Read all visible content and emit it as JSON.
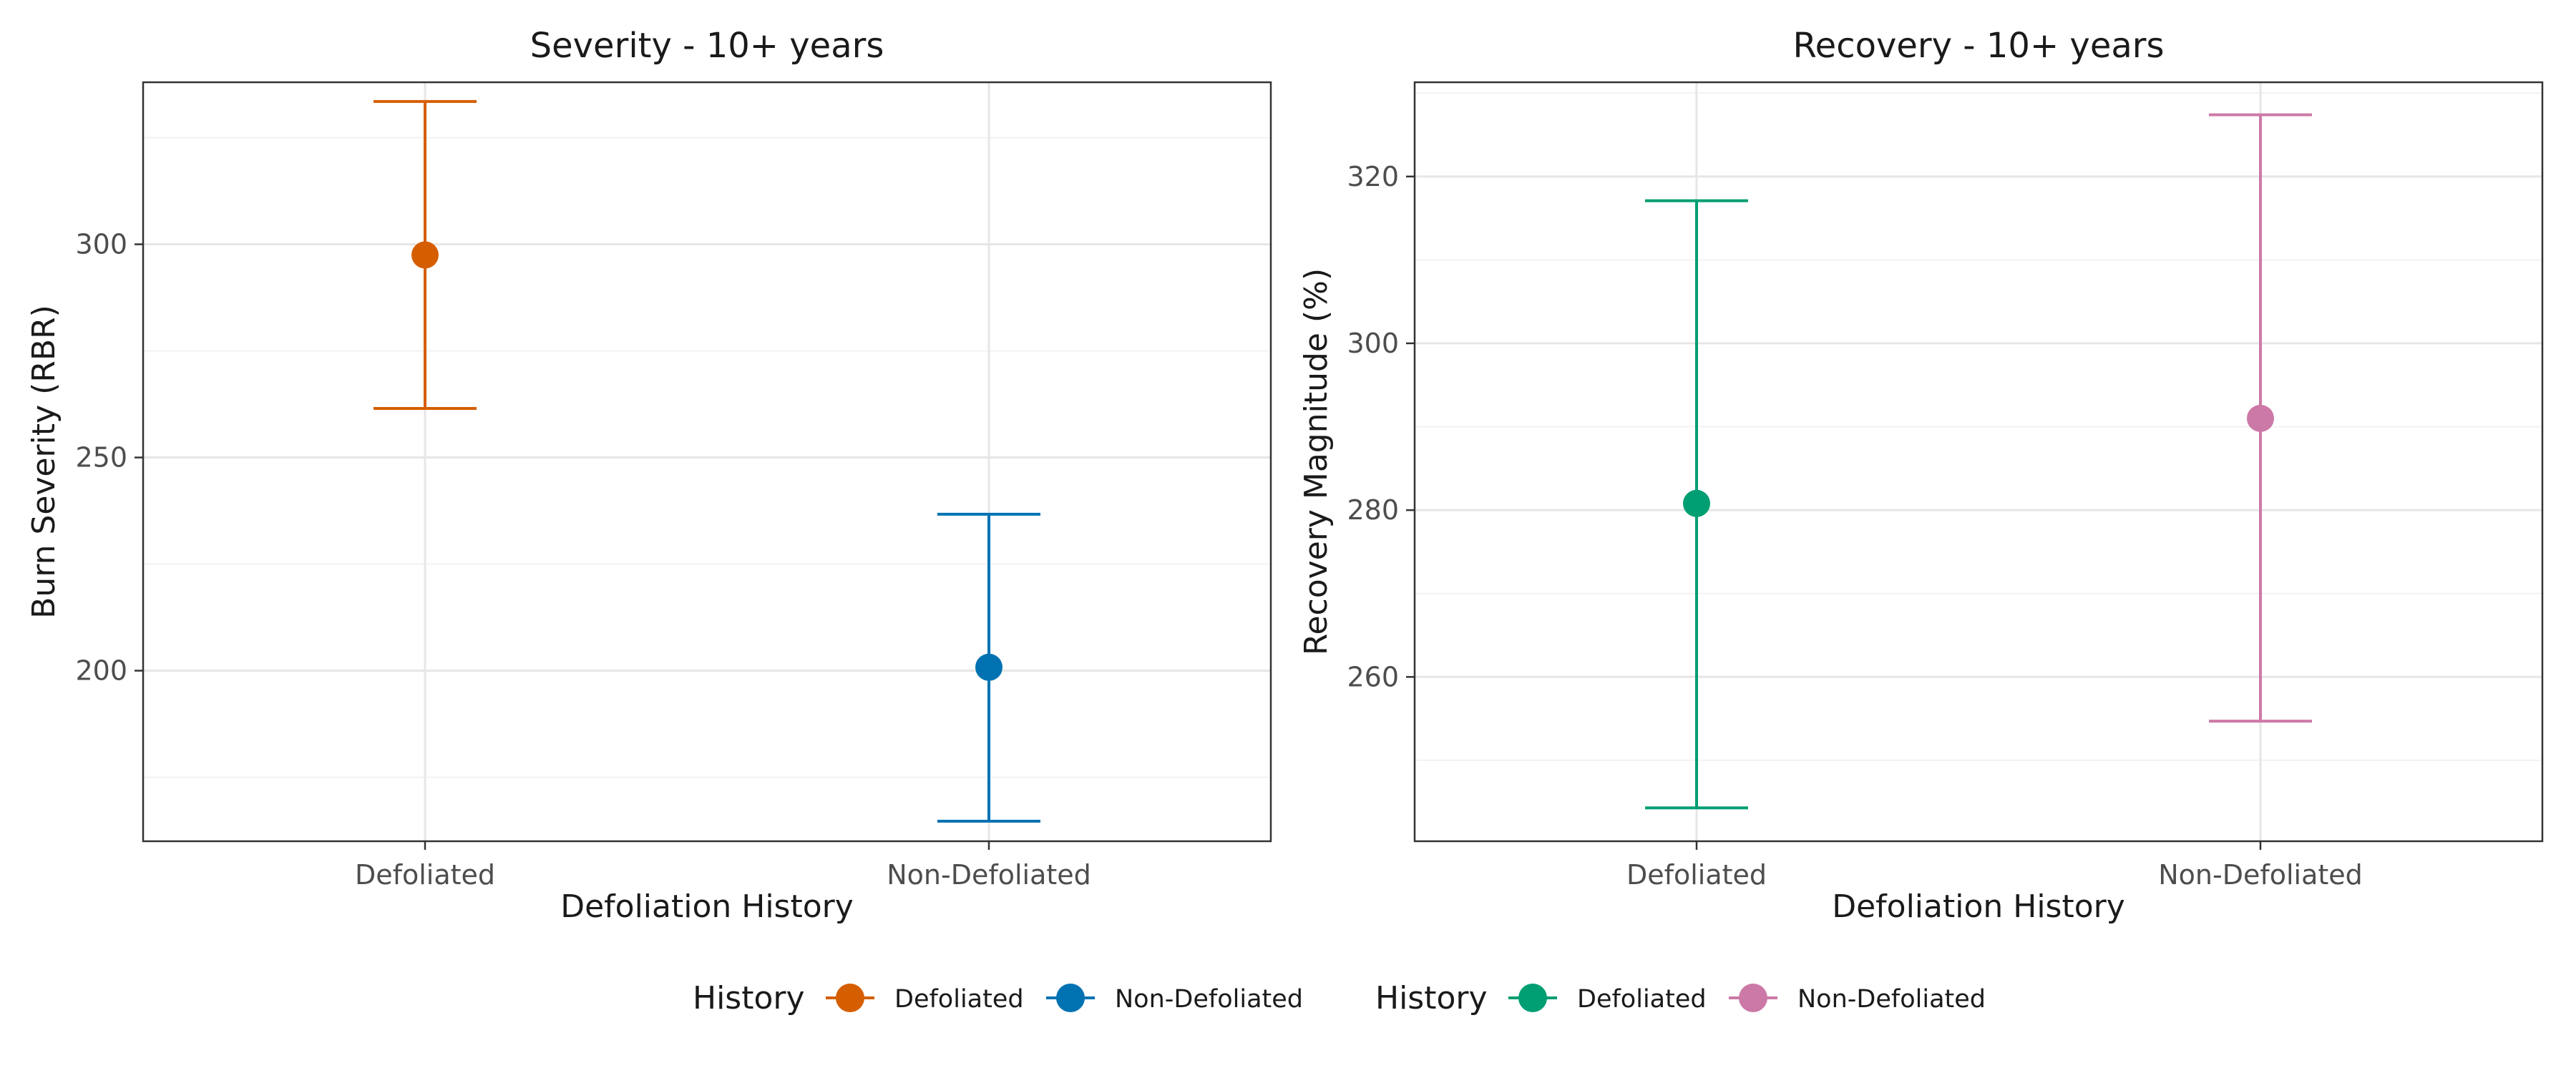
{
  "chart_data": [
    {
      "type": "errorbar",
      "title": "Severity - 10+ years",
      "xlabel": "Defoliation History",
      "ylabel": "Burn Severity (RBR)",
      "categories": [
        "Defoliated",
        "Non-Defoliated"
      ],
      "ylim": [
        160,
        338
      ],
      "yticks": [
        200,
        250,
        300
      ],
      "grid": true,
      "points": [
        {
          "category": "Defoliated",
          "y": 297.5,
          "ymin": 261.5,
          "ymax": 333.5,
          "color": "#D55E00"
        },
        {
          "category": "Non-Defoliated",
          "y": 200.8,
          "ymin": 164.7,
          "ymax": 236.7,
          "color": "#0072B2"
        }
      ],
      "legend": {
        "title": "History",
        "position": "bottom",
        "entries": [
          {
            "label": "Defoliated",
            "color": "#D55E00"
          },
          {
            "label": "Non-Defoliated",
            "color": "#0072B2"
          }
        ]
      }
    },
    {
      "type": "errorbar",
      "title": "Recovery - 10+ years",
      "xlabel": "Defoliation History",
      "ylabel": "Recovery Magnitude (%)",
      "categories": [
        "Defoliated",
        "Non-Defoliated"
      ],
      "ylim": [
        240.3,
        331.3
      ],
      "yticks": [
        260,
        280,
        300,
        320
      ],
      "grid": true,
      "points": [
        {
          "category": "Defoliated",
          "y": 280.8,
          "ymin": 244.3,
          "ymax": 317.1,
          "color": "#009E73"
        },
        {
          "category": "Non-Defoliated",
          "y": 291.0,
          "ymin": 254.7,
          "ymax": 327.4,
          "color": "#CC79A7"
        }
      ],
      "legend": {
        "title": "History",
        "position": "bottom",
        "entries": [
          {
            "label": "Defoliated",
            "color": "#009E73"
          },
          {
            "label": "Non-Defoliated",
            "color": "#CC79A7"
          }
        ]
      }
    }
  ]
}
